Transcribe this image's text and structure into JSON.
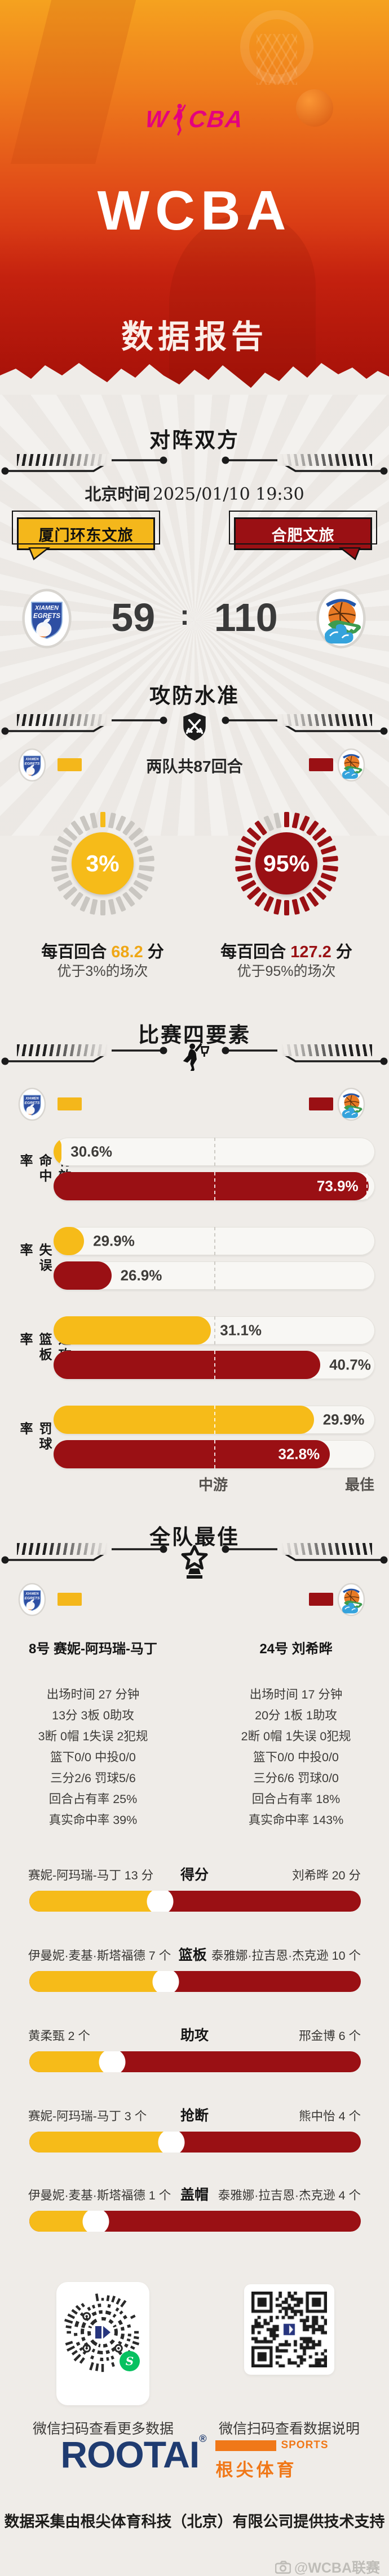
{
  "colors": {
    "home": "#F4B71B",
    "away": "#9A1014",
    "logo_magenta": "#E4007F",
    "brand_navy": "#1F3B70",
    "brand_orange": "#F07818",
    "wechat_green": "#07C160"
  },
  "header": {
    "logo_text": "WCBA",
    "title": "WCBA",
    "subtitle": "数据报告"
  },
  "matchup": {
    "section_title": "对阵双方",
    "time_label": "北京时间",
    "time_value": "2025/01/10 19:30",
    "home_team": "厦门环东文旅",
    "away_team": "合肥文旅",
    "home_score": "59",
    "colon": ":",
    "away_score": "110",
    "home_logo_line1": "XIAMEN",
    "home_logo_line2": "EGRETS"
  },
  "offense_defense": {
    "section_title": "攻防水准",
    "note": "两队共87回合",
    "home": {
      "pct": 3,
      "pct_label": "3%",
      "per100_prefix": "每百回合",
      "per100_value": "68.2",
      "per100_suffix": "分",
      "better_than": "优于3%的场次"
    },
    "away": {
      "pct": 95,
      "pct_label": "95%",
      "per100_prefix": "每百回合",
      "per100_value": "127.2",
      "per100_suffix": "分",
      "better_than": "优于95%的场次"
    }
  },
  "four_factors": {
    "section_title": "比赛四要素",
    "axis_mid": "中游",
    "axis_best": "最佳",
    "rows": [
      {
        "label": "有效命中率",
        "home": {
          "value": "30.6%",
          "bar_pct": 2.5,
          "label_inside": false
        },
        "away": {
          "value": "73.9%",
          "bar_pct": 98,
          "label_inside": true,
          "cap_line": true
        }
      },
      {
        "label": "失误率",
        "home": {
          "value": "29.9%",
          "bar_pct": 9.5,
          "label_inside": false
        },
        "away": {
          "value": "26.9%",
          "bar_pct": 18,
          "label_inside": false
        }
      },
      {
        "label": "进攻篮板率",
        "home": {
          "value": "31.1%",
          "bar_pct": 49,
          "label_inside": false
        },
        "away": {
          "value": "40.7%",
          "bar_pct": 83,
          "label_inside": false
        }
      },
      {
        "label": "罚球率",
        "home": {
          "value": "29.9%",
          "bar_pct": 81,
          "label_inside": false
        },
        "away": {
          "value": "32.8%",
          "bar_pct": 86,
          "label_inside": true
        }
      }
    ]
  },
  "team_best": {
    "section_title": "全队最佳",
    "home_player": {
      "name": "8号 赛妮-阿玛瑞-马丁",
      "lines": [
        "出场时间 27 分钟",
        "13分   3板   0助攻",
        "3断   0帽   1失误   2犯规",
        "篮下0/0   中投0/0",
        "三分2/6   罚球5/6",
        "回合占有率 25%",
        "真实命中率 39%"
      ]
    },
    "away_player": {
      "name": "24号 刘希晔",
      "lines": [
        "出场时间 17 分钟",
        "20分   1板   1助攻",
        "2断   0帽   1失误   0犯规",
        "篮下0/0   中投0/0",
        "三分6/6   罚球0/0",
        "回合占有率 18%",
        "真实命中率 143%"
      ]
    },
    "comparisons": [
      {
        "stat": "得分",
        "home_text": "赛妮-阿玛瑞-马丁 13 分",
        "away_text": "刘希晔 20 分",
        "home_value": 13,
        "away_value": 20,
        "split_pct": 39.4
      },
      {
        "stat": "篮板",
        "home_text": "伊曼妮·麦基·斯塔福德 7 个",
        "away_text": "泰雅娜·拉吉恩·杰克逊 10 个",
        "home_value": 7,
        "away_value": 10,
        "split_pct": 41.2
      },
      {
        "stat": "助攻",
        "home_text": "黄柔甄 2 个",
        "away_text": "邢金博 6 个",
        "home_value": 2,
        "away_value": 6,
        "split_pct": 25
      },
      {
        "stat": "抢断",
        "home_text": "赛妮-阿玛瑞-马丁 3 个",
        "away_text": "熊中怡 4 个",
        "home_value": 3,
        "away_value": 4,
        "split_pct": 42.9
      },
      {
        "stat": "盖帽",
        "home_text": "伊曼妮·麦基·斯塔福德 1 个",
        "away_text": "泰雅娜·拉吉恩·杰克逊 4 个",
        "home_value": 1,
        "away_value": 4,
        "split_pct": 20
      }
    ]
  },
  "footer": {
    "qr_left_caption": "微信扫码查看更多数据",
    "qr_right_caption": "微信扫码查看数据说明",
    "brand_name": "ROOTAI",
    "brand_reg": "®",
    "brand_sports": "SPORTS",
    "brand_cn": "根尖体育",
    "support_text": "数据采集由根尖体育科技（北京）有限公司提供技术支持",
    "watermark": "@WCBA联赛"
  },
  "chart_data": [
    {
      "type": "gauge",
      "title": "攻防水准",
      "subtitle": "两队共87回合",
      "series": [
        {
          "name": "厦门环东文旅",
          "percentile": 3,
          "points_per_100": 68.2,
          "note": "优于3%的场次",
          "color": "#F4B71B"
        },
        {
          "name": "合肥文旅",
          "percentile": 95,
          "points_per_100": 127.2,
          "note": "优于95%的场次",
          "color": "#9A1014"
        }
      ]
    },
    {
      "type": "bar",
      "title": "比赛四要素",
      "categories": [
        "有效命中率",
        "失误率",
        "进攻篮板率",
        "罚球率"
      ],
      "series": [
        {
          "name": "厦门环东文旅",
          "values": [
            30.6,
            29.9,
            31.1,
            29.9
          ]
        },
        {
          "name": "合肥文旅",
          "values": [
            73.9,
            26.9,
            40.7,
            32.8
          ]
        }
      ],
      "unit": "%",
      "xlabel": "",
      "ylabel": "",
      "axis_ticks": [
        "中游",
        "最佳"
      ],
      "legend_position": "top"
    },
    {
      "type": "bar",
      "title": "全队最佳对比",
      "categories": [
        "得分",
        "篮板",
        "助攻",
        "抢断",
        "盖帽"
      ],
      "series": [
        {
          "name": "厦门环东文旅",
          "values": [
            13,
            7,
            2,
            3,
            1
          ],
          "players": [
            "赛妮-阿玛瑞-马丁",
            "伊曼妮·麦基·斯塔福德",
            "黄柔甄",
            "赛妮-阿玛瑞-马丁",
            "伊曼妮·麦基·斯塔福德"
          ]
        },
        {
          "name": "合肥文旅",
          "values": [
            20,
            10,
            6,
            4,
            4
          ],
          "players": [
            "刘希晔",
            "泰雅娜·拉吉恩·杰克逊",
            "邢金博",
            "熊中怡",
            "泰雅娜·拉吉恩·杰克逊"
          ]
        }
      ],
      "units": [
        "分",
        "个",
        "个",
        "个",
        "个"
      ]
    },
    {
      "type": "scoreboard",
      "title": "对阵双方",
      "datetime": "北京时间 2025/01/10 19:30",
      "teams": [
        "厦门环东文旅",
        "合肥文旅"
      ],
      "scores": [
        59,
        110
      ]
    }
  ]
}
